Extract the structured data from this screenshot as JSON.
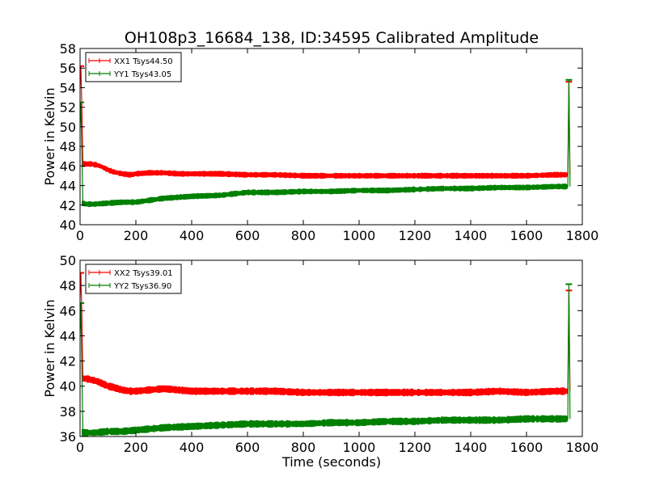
{
  "figure": {
    "title": "OH108p3_16684_138, ID:34595 Calibrated Amplitude",
    "xlabel": "Time (seconds)"
  },
  "colors": {
    "xx": "#ff0000",
    "yy": "#008000"
  },
  "chart_data": [
    {
      "type": "line",
      "ylabel": "Power in Kelvin",
      "xlim": [
        0,
        1800
      ],
      "ylim": [
        40,
        58
      ],
      "x_ticks": [
        0,
        200,
        400,
        600,
        800,
        1000,
        1200,
        1400,
        1600,
        1800
      ],
      "y_ticks": [
        40,
        42,
        44,
        46,
        48,
        50,
        52,
        54,
        56,
        58
      ],
      "legend_position": "top-left",
      "series": [
        {
          "name": "XX1 Tsys44.50",
          "color": "#ff0000",
          "x": [
            0,
            3,
            6,
            10,
            20,
            40,
            60,
            80,
            100,
            120,
            150,
            180,
            200,
            250,
            300,
            350,
            400,
            500,
            600,
            700,
            800,
            900,
            1000,
            1100,
            1200,
            1300,
            1400,
            1500,
            1600,
            1700,
            1748,
            1752,
            1756
          ],
          "values": [
            54.0,
            56.2,
            52.5,
            46.2,
            46.2,
            46.2,
            46.1,
            45.9,
            45.6,
            45.4,
            45.2,
            45.1,
            45.2,
            45.3,
            45.3,
            45.2,
            45.2,
            45.2,
            45.1,
            45.1,
            45.0,
            45.0,
            45.0,
            45.0,
            45.0,
            45.0,
            45.0,
            45.0,
            45.0,
            45.1,
            45.1,
            54.6,
            45.1
          ]
        },
        {
          "name": "YY1 Tsys43.05",
          "color": "#008000",
          "x": [
            0,
            3,
            6,
            10,
            20,
            50,
            100,
            150,
            200,
            250,
            300,
            400,
            500,
            600,
            700,
            800,
            900,
            1000,
            1100,
            1200,
            1300,
            1400,
            1500,
            1600,
            1700,
            1748,
            1752,
            1756
          ],
          "values": [
            50.0,
            52.5,
            48.0,
            42.2,
            42.1,
            42.1,
            42.2,
            42.3,
            42.3,
            42.5,
            42.7,
            42.9,
            43.0,
            43.3,
            43.3,
            43.4,
            43.4,
            43.5,
            43.5,
            43.6,
            43.7,
            43.7,
            43.8,
            43.8,
            43.9,
            43.9,
            54.8,
            43.9
          ]
        }
      ]
    },
    {
      "type": "line",
      "ylabel": "Power in Kelvin",
      "xlabel": "Time (seconds)",
      "xlim": [
        0,
        1800
      ],
      "ylim": [
        36,
        50
      ],
      "x_ticks": [
        0,
        200,
        400,
        600,
        800,
        1000,
        1200,
        1400,
        1600,
        1800
      ],
      "y_ticks": [
        36,
        38,
        40,
        42,
        44,
        46,
        48,
        50
      ],
      "legend_position": "top-left",
      "series": [
        {
          "name": "XX2 Tsys39.01",
          "color": "#ff0000",
          "x": [
            0,
            3,
            6,
            10,
            20,
            40,
            60,
            80,
            100,
            120,
            150,
            180,
            200,
            250,
            300,
            350,
            400,
            500,
            600,
            700,
            800,
            900,
            1000,
            1100,
            1200,
            1300,
            1400,
            1500,
            1600,
            1700,
            1748,
            1752,
            1756
          ],
          "values": [
            47.0,
            49.0,
            46.0,
            40.6,
            40.6,
            40.5,
            40.4,
            40.2,
            40.0,
            39.9,
            39.7,
            39.6,
            39.6,
            39.7,
            39.8,
            39.7,
            39.6,
            39.6,
            39.6,
            39.6,
            39.5,
            39.5,
            39.5,
            39.5,
            39.5,
            39.5,
            39.5,
            39.6,
            39.5,
            39.6,
            39.6,
            47.6,
            39.6
          ]
        },
        {
          "name": "YY2 Tsys36.90",
          "color": "#008000",
          "x": [
            0,
            3,
            6,
            10,
            20,
            50,
            100,
            150,
            200,
            250,
            300,
            400,
            500,
            600,
            700,
            800,
            900,
            1000,
            1100,
            1200,
            1300,
            1400,
            1500,
            1600,
            1700,
            1748,
            1752,
            1756
          ],
          "values": [
            44.0,
            46.6,
            42.0,
            36.3,
            36.3,
            36.3,
            36.4,
            36.4,
            36.5,
            36.6,
            36.7,
            36.8,
            36.9,
            37.0,
            37.0,
            37.0,
            37.1,
            37.1,
            37.2,
            37.2,
            37.3,
            37.3,
            37.3,
            37.4,
            37.4,
            37.4,
            48.1,
            37.4
          ]
        }
      ]
    }
  ]
}
